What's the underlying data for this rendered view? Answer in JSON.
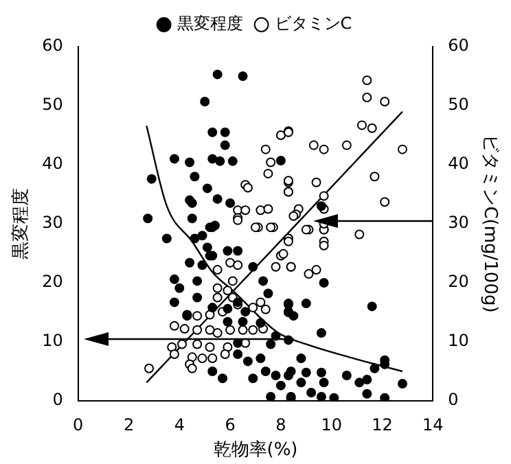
{
  "chart_data": {
    "type": "scatter",
    "xlabel": "乾物率(%)",
    "ylabel": "黒変程度",
    "y2label": "ビタミンC(mg/100g)",
    "xlim": [
      0,
      14
    ],
    "xticks": [
      0,
      2,
      4,
      6,
      8,
      10,
      12,
      14
    ],
    "ylim": [
      0,
      60
    ],
    "yticks": [
      0,
      10,
      20,
      30,
      40,
      50,
      60
    ],
    "y2lim": [
      0,
      60
    ],
    "y2ticks": [
      0,
      10,
      20,
      30,
      40,
      50,
      60
    ],
    "grid": false,
    "legend": "top",
    "marker": "circle",
    "series": [
      {
        "name": "黒変程度",
        "color": "#000000",
        "axis": "y",
        "x": [
          5.5,
          6.5,
          5.0,
          5.3,
          5.8,
          5.8,
          3.8,
          4.4,
          5.3,
          5.6,
          6.1,
          4.6,
          2.9,
          5.1,
          5.5,
          4.4,
          4.5,
          6.0,
          2.75,
          4.5,
          5.2,
          5.4,
          8.0,
          3.5,
          4.6,
          4.9,
          5.3,
          5.1,
          5.2,
          4.4,
          4.9,
          5.3,
          5.9,
          6.3,
          3.8,
          4.0,
          4.7,
          6.9,
          7.3,
          7.5,
          3.8,
          4.7,
          5.3,
          5.9,
          6.3,
          6.6,
          4.3,
          8.3,
          8.3,
          5.9,
          6.5,
          7.2,
          7.8,
          7.6,
          6.3,
          6.3,
          5.3,
          5.7,
          6.7,
          7.2,
          7.4,
          6.9,
          7.8,
          8.0,
          8.3,
          7.6,
          8.4,
          9.7,
          11.6,
          9.0,
          8.3,
          8.3,
          8.5,
          9.6,
          8.3,
          8.8,
          12.1,
          12.1,
          11.7,
          8.4,
          9.0,
          9.6,
          10.6,
          11.1,
          11.4,
          12.8,
          9.2,
          9.6,
          10.1,
          8.4,
          12.1,
          8.8,
          9.7,
          11.4,
          9.6
        ],
        "values": [
          55.3,
          55,
          50.7,
          45.5,
          45.5,
          43.3,
          41,
          40.4,
          41,
          40.6,
          40.6,
          38,
          37.6,
          36,
          34.2,
          34,
          33.5,
          33.5,
          30.9,
          30.9,
          29.4,
          29.7,
          40.7,
          27.5,
          27.5,
          28,
          29.4,
          26,
          24.6,
          23.4,
          23,
          24.6,
          25.4,
          25.4,
          20.6,
          19.1,
          20.3,
          22.7,
          20.3,
          18.2,
          16.7,
          17.5,
          15.8,
          15.6,
          16.7,
          15.1,
          14.4,
          16.3,
          15.1,
          13.4,
          13.4,
          13.2,
          11,
          9.6,
          9.8,
          7.9,
          5,
          3.8,
          6.7,
          7.2,
          5,
          3.8,
          4.3,
          2.6,
          4.3,
          0.7,
          0.7,
          20,
          16,
          16.5,
          16.5,
          15,
          14.4,
          11.5,
          10.3,
          7.2,
          6.9,
          6.2,
          5.5,
          5,
          4.8,
          4.8,
          4.3,
          3.1,
          3.6,
          2.9,
          1.4,
          0.7,
          0.5,
          0.5,
          0.5,
          3.1,
          3.1,
          1.2,
          33
        ]
      },
      {
        "name": "ビタミンC",
        "color": "#000000",
        "axis": "y2",
        "x": [
          11.4,
          11.4,
          12.1,
          11.2,
          11.6,
          12.8,
          10.6,
          9.3,
          9.7,
          8.0,
          8.3,
          11.7,
          12.1,
          9.4,
          8.3,
          8.3,
          8.7,
          8.6,
          9.7,
          9.7,
          9.1,
          9.7,
          8.3,
          7.4,
          7.6,
          7.5,
          8.3,
          8.3,
          6.6,
          6.7,
          6.3,
          6.6,
          7.2,
          7.5,
          6.3,
          7.1,
          7.7,
          8.5,
          6.3,
          7.0,
          7.6,
          8.3,
          8.0,
          7.8,
          8.4,
          6.0,
          6.3,
          5.5,
          6.1,
          5.5,
          5.9,
          5.5,
          6.1,
          6.3,
          6.9,
          7.2,
          7.4,
          4.3,
          4.7,
          5.2,
          5.7,
          3.8,
          4.2,
          4.7,
          5.2,
          5.5,
          6.0,
          6.5,
          6.9,
          7.3,
          3.7,
          4.1,
          4.7,
          5.2,
          5.9,
          6.6,
          3.8,
          4.5,
          5.3,
          5.8,
          4.4,
          4.5,
          4.9,
          2.8,
          9.0,
          9.7,
          9.7,
          11.1,
          8.3,
          8.3,
          9.7,
          9.7,
          8.1,
          8.4,
          9.4,
          9.1
        ],
        "values": [
          54.3,
          51.4,
          50.7,
          46.7,
          46.2,
          42.6,
          43.3,
          43.3,
          42.6,
          45,
          45.7,
          38,
          33.7,
          37,
          37,
          35.4,
          32.5,
          31.6,
          34.7,
          32.5,
          29,
          29,
          45.5,
          42.6,
          40.4,
          38.5,
          37.3,
          35.4,
          36.6,
          36.1,
          32.3,
          32.3,
          32.3,
          32.5,
          31,
          29.4,
          29.4,
          31.3,
          30.6,
          29.4,
          29.4,
          27.5,
          24.6,
          22.7,
          22.7,
          23.4,
          23,
          22.2,
          20.3,
          19.1,
          18.7,
          17.5,
          17.5,
          16.3,
          15.8,
          16.7,
          15.5,
          14.6,
          14.4,
          14.6,
          15.1,
          12.7,
          12.2,
          12,
          12,
          11.5,
          12,
          12,
          12,
          12.2,
          9.1,
          9.6,
          9.6,
          9.1,
          9.1,
          9.8,
          7.9,
          7.4,
          7.2,
          7.9,
          6.2,
          5.5,
          7.2,
          5.5,
          29,
          29,
          30,
          28.2,
          27.5,
          27,
          27,
          26.3,
          24.9,
          22.7,
          22.2,
          21.5
        ]
      },
      {
        "type": "line",
        "color": "#000000",
        "axis": "y",
        "marker": "none",
        "x": [
          2.7,
          3.5,
          4.5,
          5.3,
          6.1,
          7.9,
          9.0,
          10.7,
          12.8
        ],
        "values": [
          46.6,
          33,
          27,
          21.8,
          18.7,
          11.5,
          9.6,
          7.4,
          5.0
        ]
      },
      {
        "type": "line",
        "color": "#000000",
        "axis": "y2",
        "marker": "none",
        "x": [
          2.7,
          8.5,
          12.8
        ],
        "values": [
          3.1,
          29.4,
          49
        ]
      }
    ]
  }
}
